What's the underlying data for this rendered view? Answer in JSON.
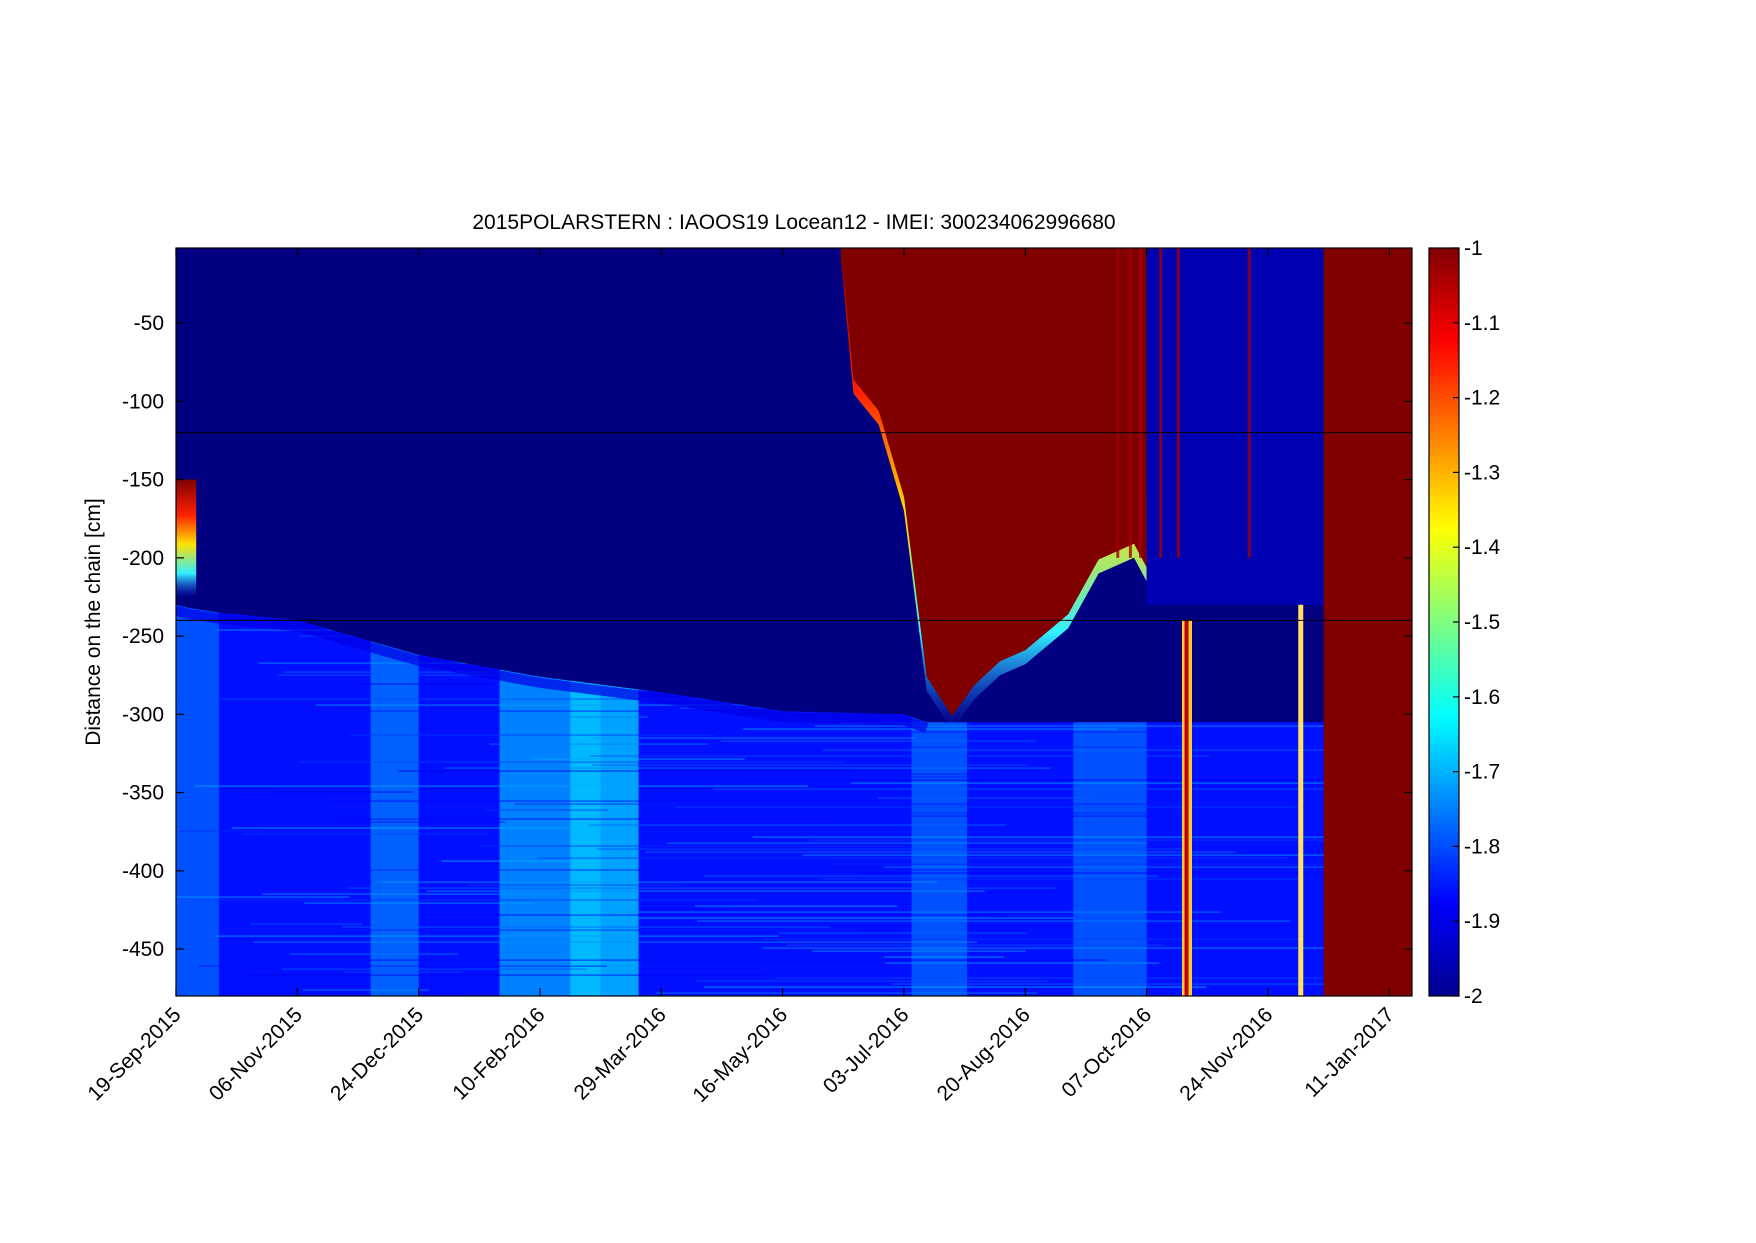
{
  "chart_data": {
    "type": "heatmap",
    "title": "2015POLARSTERN : IAOOS19  Locean12 - IMEI: 300234062996680",
    "xlabel": "",
    "ylabel": "Distance on the chain [cm]",
    "x_tick_labels": [
      "19-Sep-2015",
      "06-Nov-2015",
      "24-Dec-2015",
      "10-Feb-2016",
      "29-Mar-2016",
      "16-May-2016",
      "03-Jul-2016",
      "20-Aug-2016",
      "07-Oct-2016",
      "24-Nov-2016",
      "11-Jan-2017"
    ],
    "x_range": [
      "19-Sep-2015",
      "20-Jan-2017"
    ],
    "y_tick_labels": [
      "-50",
      "-100",
      "-150",
      "-200",
      "-250",
      "-300",
      "-350",
      "-400",
      "-450"
    ],
    "y_ticks": [
      -50,
      -100,
      -150,
      -200,
      -250,
      -300,
      -350,
      -400,
      -450
    ],
    "ylim": [
      -480,
      -2
    ],
    "colorbar": {
      "colormap": "jet",
      "range": [
        -2,
        -1
      ],
      "tick_labels": [
        "-1",
        "-1.1",
        "-1.2",
        "-1.3",
        "-1.4",
        "-1.5",
        "-1.6",
        "-1.7",
        "-1.8",
        "-1.9",
        "-2"
      ],
      "ticks": [
        -1,
        -1.1,
        -1.2,
        -1.3,
        -1.4,
        -1.5,
        -1.6,
        -1.7,
        -1.8,
        -1.9,
        -2
      ]
    },
    "reference_lines_y": [
      -120,
      -240
    ],
    "features": {
      "ice_bottom_boundary": {
        "dates": [
          "2015-09-19",
          "2015-09-24",
          "2015-10-06",
          "2015-11-06",
          "2015-12-24",
          "2016-02-10",
          "2016-03-29",
          "2016-05-16",
          "2016-07-03",
          "2016-07-12"
        ],
        "depth_cm": [
          -230,
          -232,
          -235,
          -240,
          -262,
          -276,
          -286,
          -298,
          -300,
          -305
        ]
      },
      "warm_surface_layer": {
        "dates": [
          "2016-06-08",
          "2016-06-13",
          "2016-06-23",
          "2016-07-03",
          "2016-07-12",
          "2016-07-22",
          "2016-07-31",
          "2016-08-10",
          "2016-08-20",
          "2016-09-06",
          "2016-09-18",
          "2016-10-02",
          "2016-10-07"
        ],
        "bottom_depth_cm": [
          -8,
          -95,
          -115,
          -170,
          -285,
          -310,
          -290,
          -275,
          -268,
          -245,
          -210,
          -200,
          -215
        ]
      },
      "late_warm_block_start": "2016-12-16"
    }
  }
}
